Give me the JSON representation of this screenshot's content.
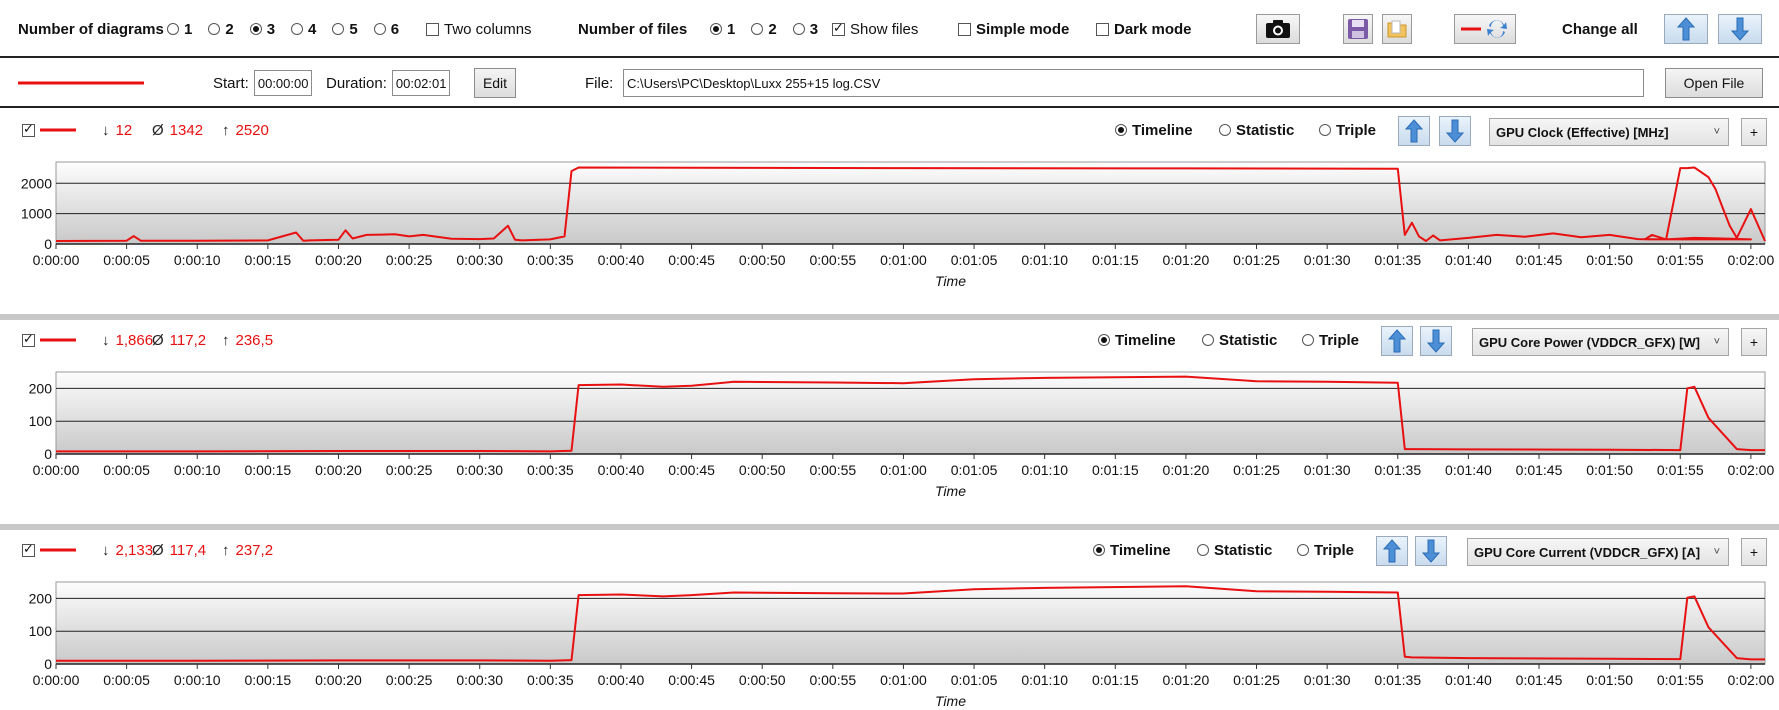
{
  "toolbar": {
    "diagrams_label": "Number of diagrams",
    "diagram_options": [
      "1",
      "2",
      "3",
      "4",
      "5",
      "6"
    ],
    "diagram_selected": "3",
    "two_columns_label": "Two columns",
    "two_columns_checked": false,
    "files_label": "Number of files",
    "file_options": [
      "1",
      "2",
      "3"
    ],
    "file_selected": "1",
    "show_files_label": "Show files",
    "show_files_checked": true,
    "simple_mode_label": "Simple mode",
    "simple_mode_checked": false,
    "dark_mode_label": "Dark mode",
    "dark_mode_checked": false,
    "change_all_label": "Change all"
  },
  "file_row": {
    "line_color": "#e81010",
    "start_label": "Start:",
    "start_value": "00:00:00",
    "duration_label": "Duration:",
    "duration_value": "00:02:01",
    "edit_label": "Edit",
    "file_label": "File:",
    "file_path": "C:\\Users\\PC\\Desktop\\Luxx 255+15 log.CSV",
    "open_file_label": "Open File"
  },
  "view_options": [
    "Timeline",
    "Statistic",
    "Triple"
  ],
  "x_ticks": [
    "0:00:00",
    "0:00:05",
    "0:00:10",
    "0:00:15",
    "0:00:20",
    "0:00:25",
    "0:00:30",
    "0:00:35",
    "0:00:40",
    "0:00:45",
    "0:00:50",
    "0:00:55",
    "0:01:00",
    "0:01:05",
    "0:01:10",
    "0:01:15",
    "0:01:20",
    "0:01:25",
    "0:01:30",
    "0:01:35",
    "0:01:40",
    "0:01:45",
    "0:01:50",
    "0:01:55",
    "0:02:00"
  ],
  "x_axis_label": "Time",
  "series_color": "#e81010",
  "panels": [
    {
      "checked": true,
      "min": "12",
      "avg": "1342",
      "max": "2520",
      "view_selected": "Timeline",
      "sensor": "GPU Clock (Effective) [MHz]",
      "plus": "+",
      "chart_data": {
        "type": "line",
        "xlabel": "Time",
        "ylim": [
          0,
          2700
        ],
        "y_ticks": [
          0,
          1000,
          2000
        ],
        "x_unit": "seconds",
        "x": [
          0,
          5,
          5.5,
          6,
          10,
          15,
          17,
          17.5,
          18,
          20,
          20.5,
          21,
          22,
          24,
          25,
          26,
          28,
          30,
          31,
          32,
          32.5,
          33,
          35,
          36,
          36.5,
          37,
          45,
          60,
          80,
          95,
          95.5,
          96,
          96.5,
          97,
          97.5,
          98,
          100,
          102,
          104,
          106,
          108,
          110,
          112,
          114,
          116,
          118,
          120,
          112.5,
          113,
          114,
          115,
          115.5,
          116,
          117,
          117.5,
          118,
          118.5,
          119,
          120,
          121
        ],
        "y": [
          100,
          110,
          260,
          110,
          110,
          120,
          380,
          110,
          120,
          140,
          450,
          180,
          300,
          320,
          250,
          300,
          170,
          160,
          180,
          600,
          140,
          120,
          150,
          250,
          2400,
          2520,
          2510,
          2500,
          2490,
          2480,
          300,
          700,
          250,
          100,
          280,
          120,
          200,
          300,
          240,
          350,
          220,
          300,
          160,
          150,
          200,
          180,
          150,
          150,
          300,
          150,
          2500,
          2500,
          2520,
          2200,
          1800,
          1200,
          600,
          200,
          1150,
          100
        ],
        "note_order": "sorted"
      }
    },
    {
      "checked": true,
      "min": "1,866",
      "avg": "117,2",
      "max": "236,5",
      "view_selected": "Timeline",
      "sensor": "GPU Core Power (VDDCR_GFX) [W]",
      "plus": "+",
      "chart_data": {
        "type": "line",
        "xlabel": "Time",
        "ylim": [
          0,
          250
        ],
        "y_ticks": [
          0,
          100,
          200
        ],
        "x_unit": "seconds",
        "x": [
          0,
          10,
          20,
          30,
          35,
          36.5,
          37,
          40,
          43,
          45,
          48,
          55,
          60,
          65,
          70,
          80,
          85,
          90,
          95,
          95.5,
          96,
          100,
          110,
          115,
          115.5,
          116,
          117,
          119,
          120,
          121
        ],
        "y": [
          8,
          8,
          9,
          9,
          8,
          10,
          210,
          212,
          205,
          208,
          220,
          218,
          216,
          228,
          232,
          236,
          222,
          220,
          217,
          15,
          15,
          14,
          13,
          12,
          200,
          205,
          110,
          15,
          12,
          12
        ]
      }
    },
    {
      "checked": true,
      "min": "2,133",
      "avg": "117,4",
      "max": "237,2",
      "view_selected": "Timeline",
      "sensor": "GPU Core Current (VDDCR_GFX) [A]",
      "plus": "+",
      "chart_data": {
        "type": "line",
        "xlabel": "Time",
        "ylim": [
          0,
          250
        ],
        "y_ticks": [
          0,
          100,
          200
        ],
        "x_unit": "seconds",
        "x": [
          0,
          10,
          20,
          30,
          35,
          36.5,
          37,
          40,
          43,
          45,
          48,
          55,
          60,
          65,
          70,
          80,
          85,
          90,
          95,
          95.5,
          96,
          100,
          110,
          115,
          115.5,
          116,
          117,
          119,
          120,
          121
        ],
        "y": [
          10,
          10,
          11,
          11,
          10,
          12,
          210,
          212,
          206,
          210,
          218,
          216,
          215,
          228,
          232,
          237,
          222,
          220,
          218,
          22,
          20,
          18,
          16,
          15,
          202,
          206,
          112,
          18,
          14,
          14
        ]
      }
    }
  ]
}
